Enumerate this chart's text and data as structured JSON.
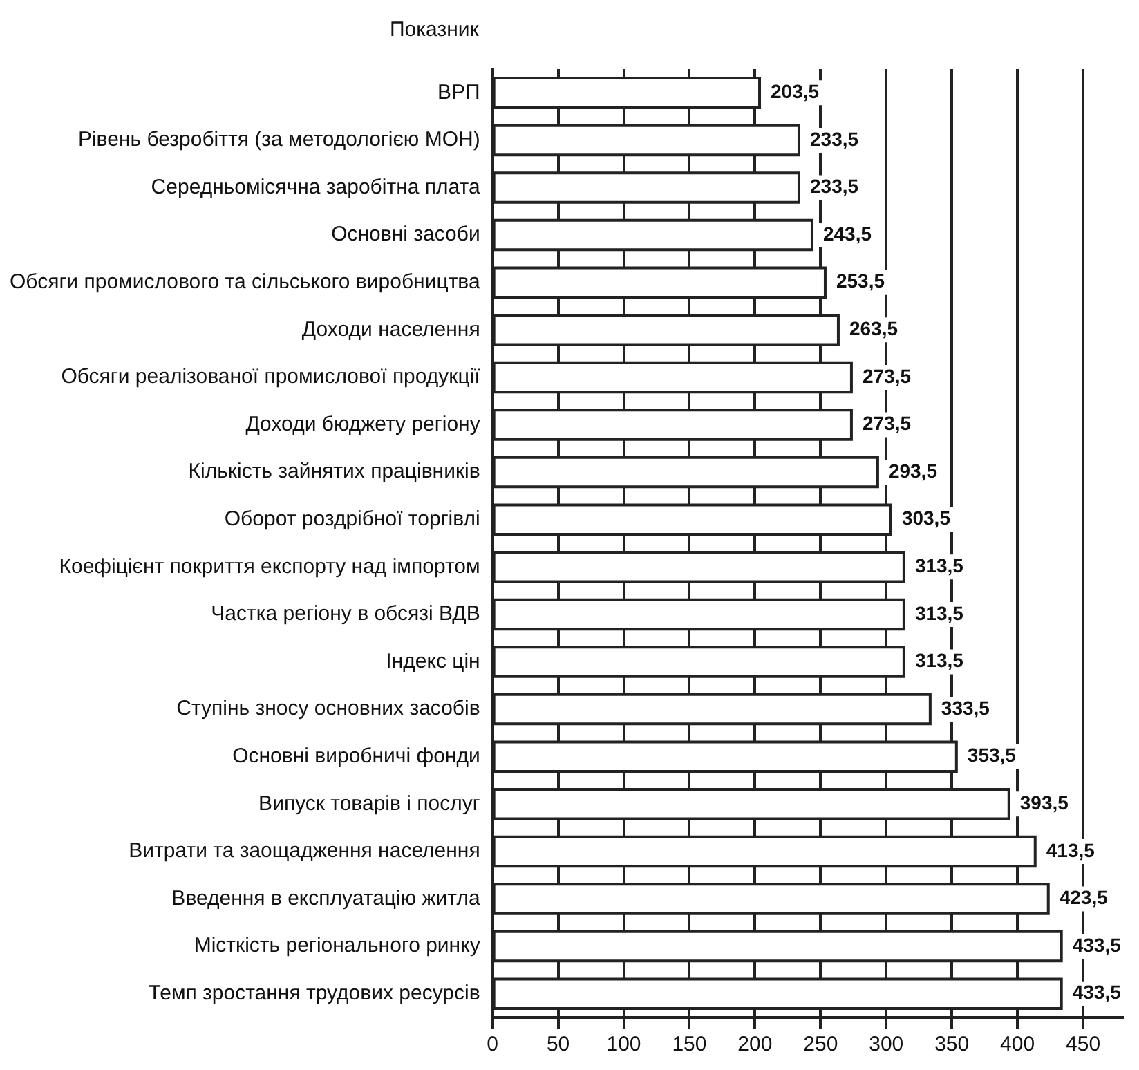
{
  "chart_data": {
    "type": "bar",
    "orientation": "horizontal",
    "ylabel": "Показник",
    "categories": [
      "ВРП",
      "Рівень безробіття (за методологією МОН)",
      "Середньомісячна заробітна плата",
      "Основні засоби",
      "Обсяги промислового та сільського виробництва",
      "Доходи населення",
      "Обсяги реалізованої промислової продукції",
      "Доходи бюджету регіону",
      "Кількість зайнятих працівників",
      "Оборот роздрібної торгівлі",
      "Коефіцієнт покриття експорту над імпортом",
      "Частка регіону в обсязі ВДВ",
      "Індекс цін",
      "Ступінь зносу основних засобів",
      "Основні виробничі фонди",
      "Випуск товарів і послуг",
      "Витрати та заощадження населення",
      "Введення в експлуатацію житла",
      "Місткість регіонального ринку",
      "Темп зростання трудових ресурсів"
    ],
    "values": [
      203.5,
      233.5,
      233.5,
      243.5,
      253.5,
      263.5,
      273.5,
      273.5,
      293.5,
      303.5,
      313.5,
      313.5,
      313.5,
      333.5,
      353.5,
      393.5,
      413.5,
      423.5,
      433.5,
      433.5
    ],
    "value_labels": [
      "203,5",
      "233,5",
      "233,5",
      "243,5",
      "253,5",
      "263,5",
      "273,5",
      "273,5",
      "293,5",
      "303,5",
      "313,5",
      "313,5",
      "313,5",
      "333,5",
      "353,5",
      "393,5",
      "413,5",
      "423,5",
      "433,5",
      "433,5"
    ],
    "color": "#ffffff",
    "xlim": [
      0,
      480
    ],
    "xticks": [
      0,
      50,
      100,
      150,
      200,
      250,
      300,
      350,
      400,
      450
    ],
    "grid": "x"
  }
}
